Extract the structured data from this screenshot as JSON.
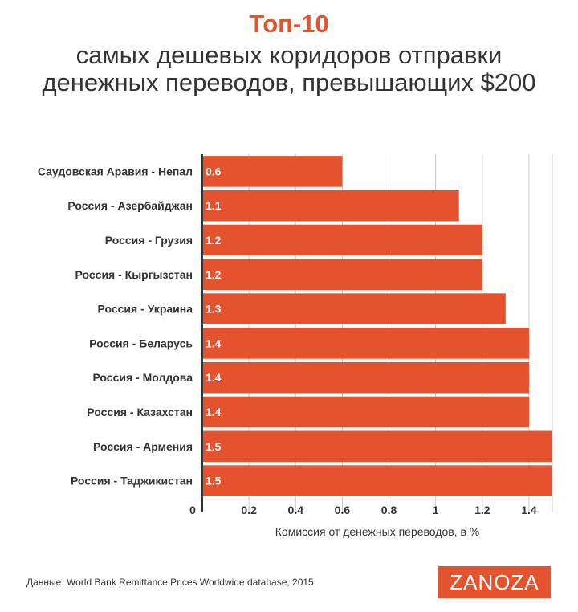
{
  "header": {
    "title": "Топ-10",
    "subtitle": "самых дешевых коридоров отправки денежных переводов, превышающих $200"
  },
  "chart_data": {
    "type": "bar",
    "orientation": "horizontal",
    "categories": [
      "Саудовская Аравия - Непал",
      "Россия - Азербайджан",
      "Россия - Грузия",
      "Россия - Кыргызстан",
      "Россия - Украина",
      "Россия - Беларусь",
      "Россия - Молдова",
      "Россия - Казахстан",
      "Россия - Армения",
      "Россия - Таджикистан"
    ],
    "values": [
      0.6,
      1.1,
      1.2,
      1.2,
      1.3,
      1.4,
      1.4,
      1.4,
      1.5,
      1.5
    ],
    "data_labels": [
      "0.6",
      "1.1",
      "1.2",
      "1.2",
      "1.3",
      "1.4",
      "1.4",
      "1.4",
      "1.5",
      "1.5"
    ],
    "x_ticks": [
      0,
      0.2,
      0.4,
      0.6,
      0.8,
      1,
      1.2,
      1.4
    ],
    "x_tick_labels": [
      "0",
      "0.2",
      "0.4",
      "0.6",
      "0.8",
      "1",
      "1.2",
      "1.4"
    ],
    "xlim": [
      0,
      1.5
    ],
    "xlabel": "Комиссия от денежных переводов, в %",
    "grid": true,
    "bar_color": "#e4532e",
    "label_color": "#ffffff"
  },
  "footer": {
    "source": "Данные:  World Bank Remittance Prices Worldwide database, 2015",
    "logo": "ZANOZA"
  }
}
